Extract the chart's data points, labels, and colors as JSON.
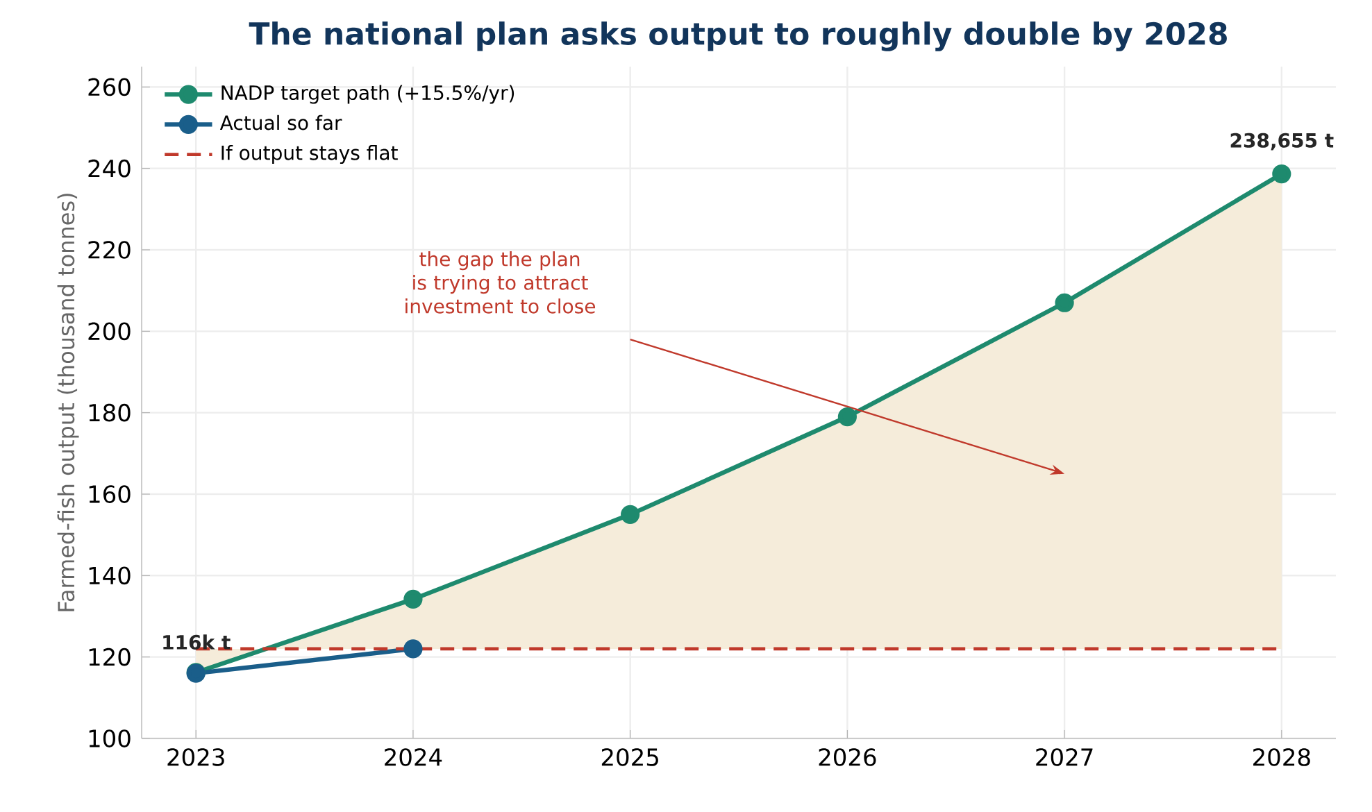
{
  "chart_data": {
    "type": "line",
    "title": "The national plan asks output to roughly double by 2028",
    "ylabel": "Farmed-fish output (thousand tonnes)",
    "x": [
      2023,
      2024,
      2025,
      2026,
      2027,
      2028
    ],
    "series": [
      {
        "name": "NADP target path (+15.5%/yr)",
        "color": "#1e8a6e",
        "values": [
          116.2,
          134.2,
          155,
          179,
          207,
          238.655
        ],
        "marker": "circle",
        "line_style": "solid",
        "lower": [
          122,
          122,
          122,
          122,
          122,
          122
        ],
        "upper": [
          116.2,
          134.2,
          155,
          179,
          207,
          238.655
        ]
      },
      {
        "name": "Actual so far",
        "color": "#1a5e8a",
        "values": [
          116,
          122,
          null,
          null,
          null,
          null
        ],
        "marker": "circle",
        "line_style": "solid"
      },
      {
        "name": "If output stays flat",
        "color": "#c0392b",
        "values": [
          122,
          122,
          122,
          122,
          122,
          122
        ],
        "marker": "none",
        "line_style": "dashed"
      }
    ],
    "xlim": [
      2022.75,
      2028.25
    ],
    "xticks": [
      2023,
      2024,
      2025,
      2026,
      2027,
      2028
    ],
    "ylim": [
      100,
      265
    ],
    "yticks": [
      100,
      120,
      140,
      160,
      180,
      200,
      220,
      240,
      260
    ],
    "grid": true,
    "legend": "top left",
    "annotations": [
      {
        "text": "116k t",
        "x": 2023,
        "y": 116
      },
      {
        "text": "238,655 t",
        "x": 2028,
        "y": 238.655
      },
      "the gap the plan is trying to attract investment to close"
    ]
  }
}
